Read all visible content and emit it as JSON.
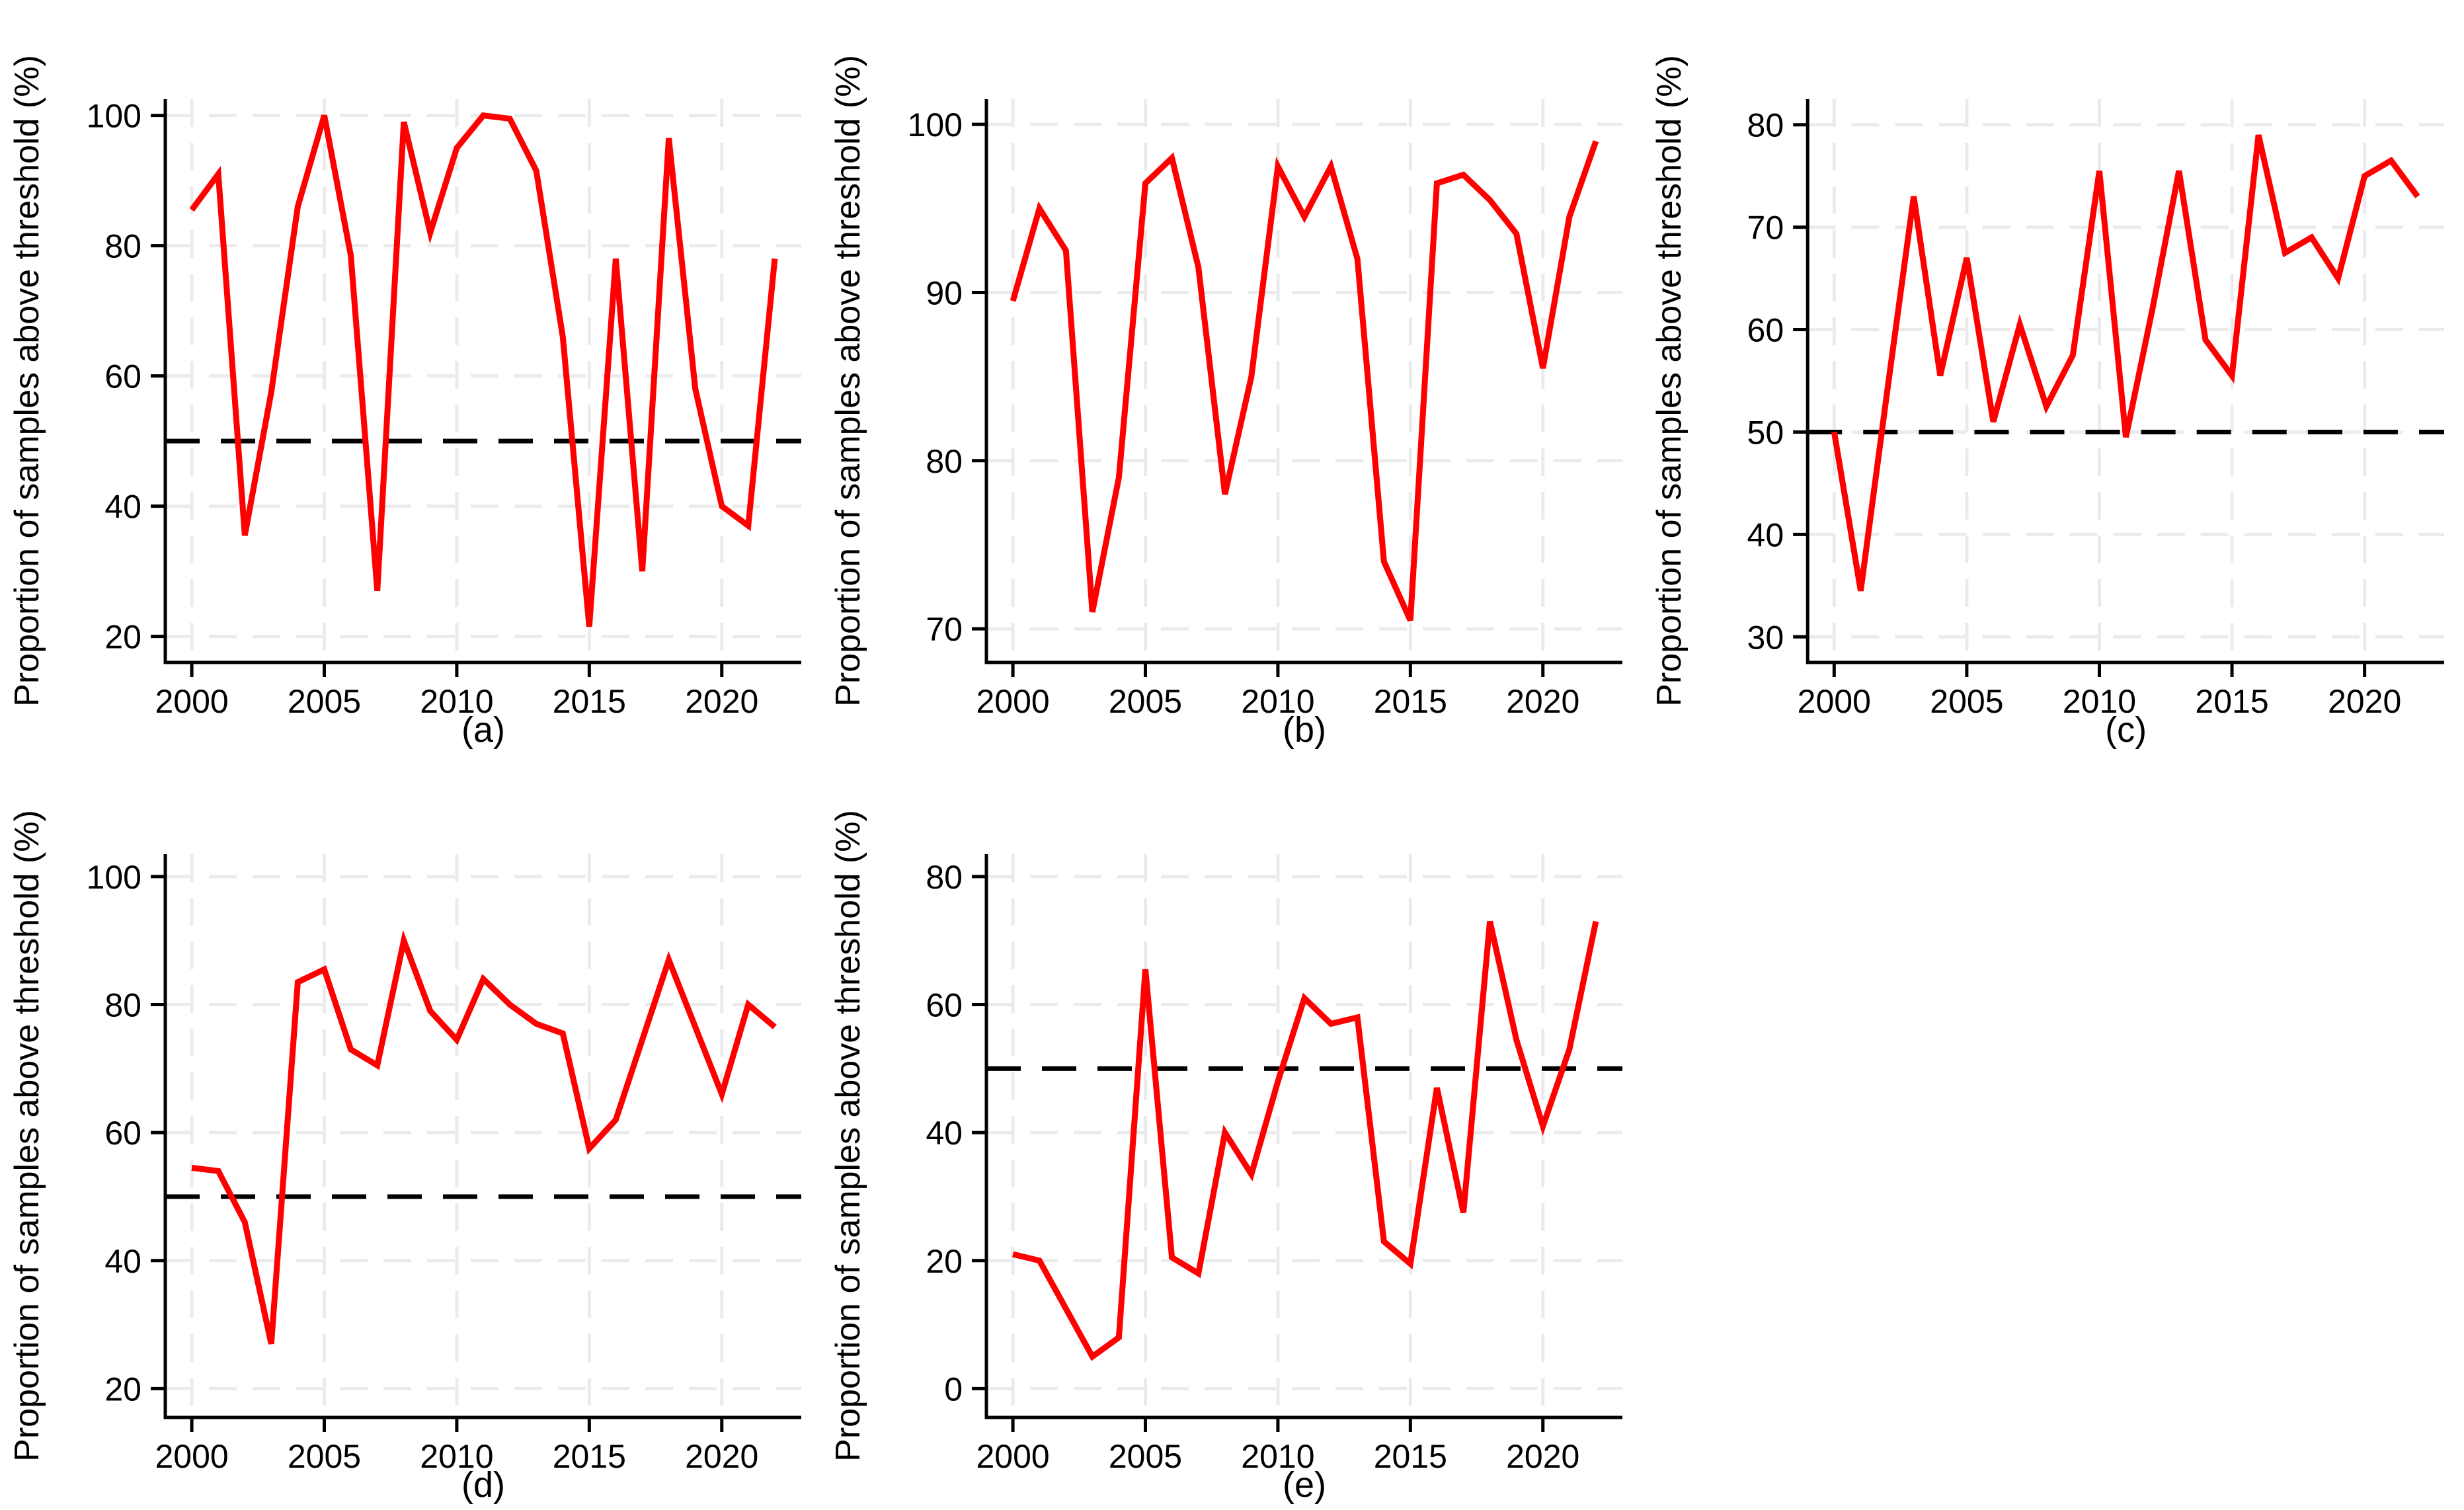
{
  "figure": {
    "background_color": "#ffffff",
    "line_color": "#ff0000",
    "threshold_color": "#000000",
    "grid_color": "#ebebeb",
    "axis_color": "#000000",
    "text_color": "#000000",
    "y_axis_title": "Proportion of samples above threshold (%)",
    "captions": [
      "(a)",
      "(b)",
      "(c)",
      "(d)",
      "(e)"
    ]
  },
  "chart_data": [
    {
      "type": "line",
      "title": "(a)",
      "ylabel": "Proportion of samples above threshold (%)",
      "xlabel": "",
      "legend": "none",
      "grid": true,
      "x": [
        2000,
        2001,
        2002,
        2003,
        2004,
        2005,
        2006,
        2007,
        2008,
        2009,
        2010,
        2011,
        2012,
        2013,
        2014,
        2015,
        2016,
        2017,
        2018,
        2019,
        2020,
        2021,
        2022
      ],
      "values": [
        85.5,
        91,
        35.5,
        57.5,
        86,
        100,
        78.5,
        27,
        99,
        82,
        95,
        100,
        99.5,
        91.5,
        66,
        21.5,
        78,
        30,
        96.5,
        58,
        40,
        37,
        78
      ],
      "threshold": 50,
      "xticks": [
        2000,
        2005,
        2010,
        2015,
        2020
      ],
      "yticks": [
        20,
        40,
        60,
        80,
        100
      ],
      "xlim": [
        1999,
        2023
      ],
      "ylim": [
        16,
        102.5
      ]
    },
    {
      "type": "line",
      "title": "(b)",
      "ylabel": "Proportion of samples above threshold (%)",
      "xlabel": "",
      "legend": "none",
      "grid": true,
      "x": [
        2000,
        2001,
        2002,
        2003,
        2004,
        2005,
        2006,
        2007,
        2008,
        2009,
        2010,
        2011,
        2012,
        2013,
        2014,
        2015,
        2016,
        2017,
        2018,
        2019,
        2020,
        2021,
        2022
      ],
      "values": [
        89.5,
        95,
        92.5,
        71,
        79,
        96.5,
        98,
        91.5,
        78,
        85,
        97.5,
        94.5,
        97.5,
        92,
        74,
        70.5,
        96.5,
        97,
        95.5,
        93.5,
        85.5,
        94.5,
        99
      ],
      "threshold": null,
      "xticks": [
        2000,
        2005,
        2010,
        2015,
        2020
      ],
      "yticks": [
        70,
        80,
        90,
        100
      ],
      "xlim": [
        1999,
        2023
      ],
      "ylim": [
        68,
        101.5
      ]
    },
    {
      "type": "line",
      "title": "(c)",
      "ylabel": "Proportion of samples above threshold (%)",
      "xlabel": "",
      "legend": "none",
      "grid": true,
      "x": [
        2000,
        2001,
        2002,
        2003,
        2004,
        2005,
        2006,
        2007,
        2008,
        2009,
        2010,
        2011,
        2012,
        2013,
        2014,
        2015,
        2016,
        2017,
        2018,
        2019,
        2020,
        2021,
        2022
      ],
      "values": [
        50,
        34.5,
        54,
        73,
        55.5,
        67,
        51,
        60.5,
        52.5,
        57.5,
        75.5,
        49.5,
        62,
        75.5,
        59,
        55.5,
        79,
        67.5,
        69,
        65,
        75,
        76.5,
        73
      ],
      "threshold": 50,
      "xticks": [
        2000,
        2005,
        2010,
        2015,
        2020
      ],
      "yticks": [
        30,
        40,
        50,
        60,
        70,
        80
      ],
      "xlim": [
        1999,
        2023
      ],
      "ylim": [
        27.5,
        82.5
      ]
    },
    {
      "type": "line",
      "title": "(d)",
      "ylabel": "Proportion of samples above threshold (%)",
      "xlabel": "",
      "legend": "none",
      "grid": true,
      "x": [
        2000,
        2001,
        2002,
        2003,
        2004,
        2005,
        2006,
        2007,
        2008,
        2009,
        2010,
        2011,
        2012,
        2013,
        2014,
        2015,
        2016,
        2017,
        2018,
        2019,
        2020,
        2021,
        2022
      ],
      "values": [
        54.5,
        54,
        46,
        27,
        83.5,
        85.5,
        73,
        70.5,
        90,
        79,
        74.5,
        84,
        80,
        77,
        75.5,
        57.5,
        62,
        74.5,
        87,
        76.5,
        66,
        80,
        76.5
      ],
      "threshold": 50,
      "xticks": [
        2000,
        2005,
        2010,
        2015,
        2020
      ],
      "yticks": [
        20,
        40,
        60,
        80,
        100
      ],
      "xlim": [
        1999,
        2023
      ],
      "ylim": [
        15.5,
        103.5
      ]
    },
    {
      "type": "line",
      "title": "(e)",
      "ylabel": "Proportion of samples above threshold (%)",
      "xlabel": "",
      "legend": "none",
      "grid": true,
      "x": [
        2000,
        2001,
        2002,
        2003,
        2004,
        2005,
        2006,
        2007,
        2008,
        2009,
        2010,
        2011,
        2012,
        2013,
        2014,
        2015,
        2016,
        2017,
        2018,
        2019,
        2020,
        2021,
        2022
      ],
      "values": [
        21,
        20,
        12.5,
        5,
        8,
        65.5,
        20.5,
        18,
        40,
        33.5,
        48,
        61,
        57,
        58,
        23,
        19.5,
        47,
        27.5,
        73,
        54.5,
        41,
        53,
        73
      ],
      "threshold": 50,
      "xticks": [
        2000,
        2005,
        2010,
        2015,
        2020
      ],
      "yticks": [
        0,
        20,
        40,
        60,
        80
      ],
      "xlim": [
        1999,
        2023
      ],
      "ylim": [
        -4.5,
        83.5
      ]
    }
  ]
}
